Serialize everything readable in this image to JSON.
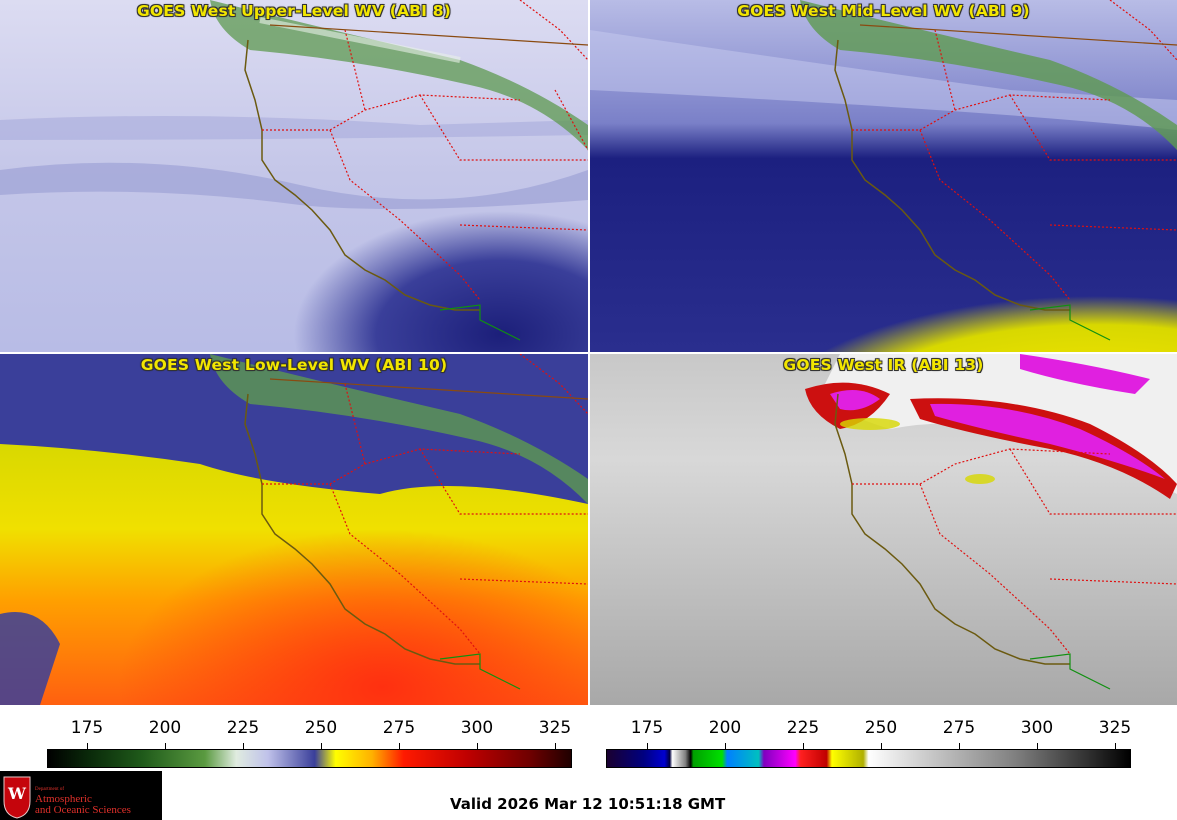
{
  "panels": [
    {
      "title": "GOES West Upper-Level WV (ABI 8)",
      "scheme": "wv_upper"
    },
    {
      "title": "GOES West Mid-Level WV (ABI 9)",
      "scheme": "wv_mid"
    },
    {
      "title": "GOES West Low-Level WV (ABI 10)",
      "scheme": "wv_low"
    },
    {
      "title": "GOES West IR (ABI 13)",
      "scheme": "ir"
    }
  ],
  "colorbars": [
    {
      "ticks": [
        "175",
        "200",
        "225",
        "250",
        "275",
        "300",
        "325"
      ],
      "scale": "water-vapor"
    },
    {
      "ticks": [
        "175",
        "200",
        "225",
        "250",
        "275",
        "300",
        "325"
      ],
      "scale": "infrared"
    }
  ],
  "footer": {
    "valid": "Valid 2026 Mar 12 10:51:18 GMT",
    "logo_dept": "Department of",
    "logo_line1": "Atmospheric",
    "logo_line2": "and Oceanic Sciences",
    "logo_letter": "W"
  },
  "colors": {
    "title_yellow": "#f2e600",
    "state_borders": "#e01010",
    "coastline": "#6b5a10",
    "mexico_border": "#109010"
  }
}
